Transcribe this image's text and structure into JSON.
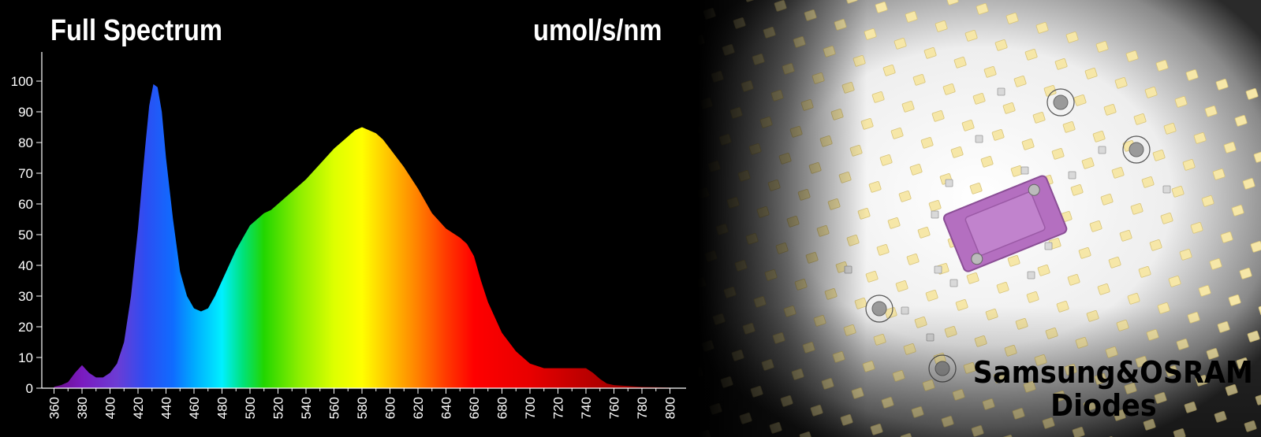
{
  "chart_data": {
    "type": "area",
    "title": "Full Spectrum",
    "ylabel": "umol/s/nm",
    "xlabel": "",
    "xlim": [
      355,
      810
    ],
    "ylim": [
      0,
      110
    ],
    "x_ticks": [
      360,
      380,
      400,
      420,
      440,
      460,
      480,
      500,
      520,
      540,
      560,
      580,
      600,
      620,
      640,
      660,
      680,
      700,
      720,
      740,
      760,
      780,
      800
    ],
    "y_ticks": [
      0,
      10,
      20,
      30,
      40,
      50,
      60,
      70,
      80,
      90,
      100
    ],
    "grid": false,
    "series": [
      {
        "x": [
          360,
          365,
          370,
          375,
          380,
          385,
          390,
          395,
          400,
          405,
          410,
          415,
          420,
          425,
          428,
          431,
          434,
          437,
          440,
          445,
          450,
          455,
          460,
          465,
          470,
          475,
          480,
          485,
          490,
          495,
          500,
          505,
          510,
          515,
          520,
          530,
          540,
          550,
          560,
          570,
          575,
          580,
          585,
          590,
          595,
          600,
          610,
          620,
          630,
          640,
          650,
          655,
          660,
          665,
          670,
          680,
          690,
          700,
          710,
          720,
          730,
          740,
          745,
          750,
          755,
          760,
          770,
          780,
          790,
          800
        ],
        "values": [
          0.5,
          1,
          2,
          5,
          7.5,
          5,
          3.5,
          3.5,
          5,
          8,
          15,
          30,
          52,
          78,
          92,
          99,
          98,
          90,
          75,
          55,
          38,
          30,
          26,
          25,
          26,
          30,
          35,
          40,
          45,
          49,
          53,
          55,
          57,
          58,
          60,
          64,
          68,
          73,
          78,
          82,
          84,
          85,
          84,
          83,
          81,
          78,
          72,
          65,
          57,
          52,
          49,
          47,
          43,
          35,
          28,
          18,
          12,
          8,
          6.5,
          6.5,
          6.5,
          6.5,
          5,
          3,
          1.5,
          1,
          0.7,
          0.4,
          0.3,
          0.2
        ]
      }
    ]
  },
  "photo": {
    "caption_line1": "Samsung&OSRAM",
    "caption_line2": "Diodes"
  }
}
